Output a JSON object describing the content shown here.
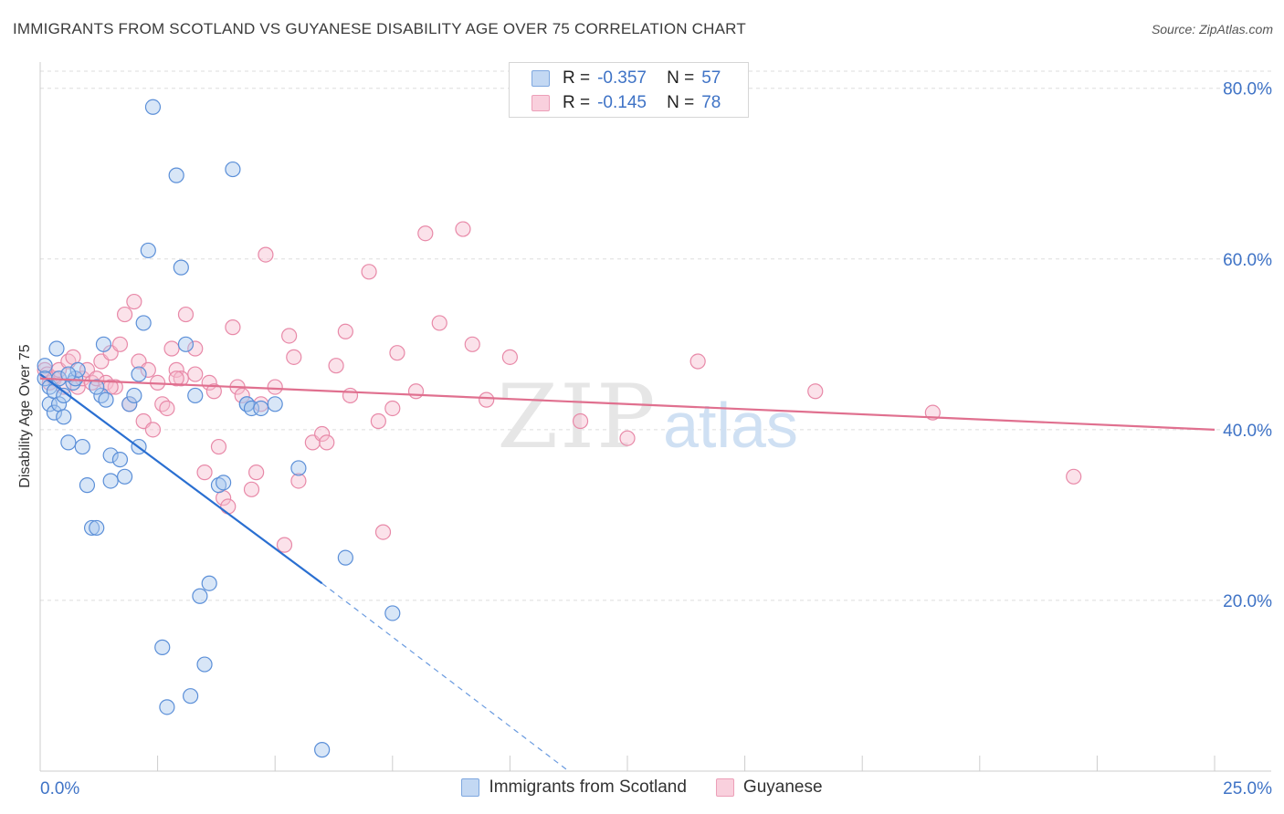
{
  "title": "IMMIGRANTS FROM SCOTLAND VS GUYANESE DISABILITY AGE OVER 75 CORRELATION CHART",
  "source": "Source: ZipAtlas.com",
  "watermark": {
    "zip": "ZIP",
    "atlas": "atlas"
  },
  "colors": {
    "blue_fill": "#a9c8ee",
    "blue_stroke": "#5b8fd8",
    "blue_line": "#2a6fd1",
    "pink_fill": "#f6bfd0",
    "pink_stroke": "#e889a8",
    "pink_line": "#e0708f",
    "tick_label": "#3f73c6",
    "grid": "#dddddd"
  },
  "legend": {
    "series": [
      {
        "r_label": "R =",
        "r_value": "-0.357",
        "n_label": "N =",
        "n_value": "57"
      },
      {
        "r_label": "R =",
        "r_value": "-0.145",
        "n_label": "N =",
        "n_value": "78"
      }
    ]
  },
  "chart_data": {
    "type": "scatter",
    "title": "IMMIGRANTS FROM SCOTLAND VS GUYANESE DISABILITY AGE OVER 75 CORRELATION CHART",
    "xlabel": "",
    "ylabel": "Disability Age Over 75",
    "xlim": [
      0,
      25
    ],
    "ylim": [
      0,
      82
    ],
    "x_tick_labels": [
      "0.0%",
      "25.0%"
    ],
    "y_tick_labels": [
      "20.0%",
      "40.0%",
      "60.0%",
      "80.0%"
    ],
    "y_ticks": [
      20,
      40,
      60,
      80
    ],
    "grid": true,
    "legend_position": "bottom",
    "series": [
      {
        "name": "Immigrants from Scotland",
        "points": [
          [
            0.1,
            47.5
          ],
          [
            0.1,
            46
          ],
          [
            0.2,
            45
          ],
          [
            0.2,
            43
          ],
          [
            0.3,
            42
          ],
          [
            0.3,
            44.5
          ],
          [
            0.35,
            49.5
          ],
          [
            0.4,
            46
          ],
          [
            0.4,
            43
          ],
          [
            0.5,
            44
          ],
          [
            0.5,
            41.5
          ],
          [
            0.6,
            38.5
          ],
          [
            0.7,
            45.5
          ],
          [
            0.75,
            46
          ],
          [
            0.8,
            47
          ],
          [
            0.9,
            38
          ],
          [
            1.0,
            33.5
          ],
          [
            1.1,
            28.5
          ],
          [
            1.2,
            28.5
          ],
          [
            1.3,
            44
          ],
          [
            1.35,
            50
          ],
          [
            1.4,
            43.5
          ],
          [
            1.5,
            34
          ],
          [
            1.5,
            37
          ],
          [
            1.7,
            36.5
          ],
          [
            1.8,
            34.5
          ],
          [
            1.9,
            43
          ],
          [
            2.0,
            44
          ],
          [
            2.1,
            38
          ],
          [
            2.1,
            46.5
          ],
          [
            2.2,
            52.5
          ],
          [
            2.3,
            61
          ],
          [
            2.4,
            77.8
          ],
          [
            2.6,
            14.5
          ],
          [
            2.7,
            7.5
          ],
          [
            2.9,
            69.8
          ],
          [
            3.0,
            59
          ],
          [
            3.1,
            50
          ],
          [
            3.2,
            8.8
          ],
          [
            3.3,
            44
          ],
          [
            3.4,
            20.5
          ],
          [
            3.5,
            12.5
          ],
          [
            3.6,
            22
          ],
          [
            3.8,
            33.5
          ],
          [
            3.9,
            33.8
          ],
          [
            4.1,
            70.5
          ],
          [
            4.4,
            43
          ],
          [
            4.4,
            43
          ],
          [
            4.5,
            42.5
          ],
          [
            4.7,
            42.5
          ],
          [
            5.0,
            43
          ],
          [
            5.5,
            35.5
          ],
          [
            6.0,
            2.5
          ],
          [
            6.5,
            25
          ],
          [
            7.5,
            18.5
          ],
          [
            0.6,
            46.5
          ],
          [
            1.2,
            45
          ]
        ]
      },
      {
        "name": "Guyanese",
        "points": [
          [
            0.1,
            47
          ],
          [
            0.15,
            46.5
          ],
          [
            0.2,
            45.5
          ],
          [
            0.3,
            46
          ],
          [
            0.4,
            47
          ],
          [
            0.5,
            45
          ],
          [
            0.6,
            48
          ],
          [
            0.7,
            48.5
          ],
          [
            0.8,
            45
          ],
          [
            0.9,
            46
          ],
          [
            1.0,
            47
          ],
          [
            1.1,
            45.5
          ],
          [
            1.2,
            46
          ],
          [
            1.3,
            48
          ],
          [
            1.4,
            45.5
          ],
          [
            1.5,
            49
          ],
          [
            1.6,
            45
          ],
          [
            1.7,
            50
          ],
          [
            1.8,
            53.5
          ],
          [
            1.9,
            43
          ],
          [
            2.0,
            55
          ],
          [
            2.1,
            48
          ],
          [
            2.2,
            41
          ],
          [
            2.3,
            47
          ],
          [
            2.4,
            40
          ],
          [
            2.5,
            45.5
          ],
          [
            2.6,
            43
          ],
          [
            2.7,
            42.5
          ],
          [
            2.8,
            49.5
          ],
          [
            2.9,
            47
          ],
          [
            3.0,
            46
          ],
          [
            3.1,
            53.5
          ],
          [
            3.3,
            49.5
          ],
          [
            3.5,
            35
          ],
          [
            3.6,
            45.5
          ],
          [
            3.7,
            44.5
          ],
          [
            3.8,
            38
          ],
          [
            3.9,
            32
          ],
          [
            4.0,
            31
          ],
          [
            4.1,
            52
          ],
          [
            4.2,
            45
          ],
          [
            4.3,
            44
          ],
          [
            4.5,
            33
          ],
          [
            4.6,
            35
          ],
          [
            4.7,
            43
          ],
          [
            4.8,
            60.5
          ],
          [
            5.0,
            45
          ],
          [
            5.2,
            26.5
          ],
          [
            5.3,
            51
          ],
          [
            5.4,
            48.5
          ],
          [
            5.5,
            34
          ],
          [
            5.8,
            38.5
          ],
          [
            6.0,
            39.5
          ],
          [
            6.1,
            38.5
          ],
          [
            6.3,
            47.5
          ],
          [
            6.5,
            51.5
          ],
          [
            6.6,
            44
          ],
          [
            7.0,
            58.5
          ],
          [
            7.2,
            41
          ],
          [
            7.3,
            28
          ],
          [
            7.5,
            42.5
          ],
          [
            7.6,
            49
          ],
          [
            8.0,
            44.5
          ],
          [
            8.2,
            63
          ],
          [
            8.5,
            52.5
          ],
          [
            9.0,
            63.5
          ],
          [
            9.2,
            50
          ],
          [
            9.5,
            43.5
          ],
          [
            10.0,
            48.5
          ],
          [
            11.5,
            41
          ],
          [
            12.5,
            39
          ],
          [
            14.0,
            48
          ],
          [
            16.5,
            44.5
          ],
          [
            19.0,
            42
          ],
          [
            22.0,
            34.5
          ],
          [
            1.5,
            45
          ],
          [
            2.9,
            46
          ],
          [
            3.3,
            46.5
          ]
        ]
      }
    ],
    "trend_lines": [
      {
        "series": "Immigrants from Scotland",
        "solid_from": [
          0,
          46.5
        ],
        "solid_to": [
          6,
          22
        ],
        "dashed_to": [
          11.25,
          0
        ]
      },
      {
        "series": "Guyanese",
        "from": [
          0,
          46
        ],
        "to": [
          25,
          40
        ]
      }
    ]
  },
  "bottom_legend": {
    "items": [
      "Immigrants from Scotland",
      "Guyanese"
    ]
  }
}
